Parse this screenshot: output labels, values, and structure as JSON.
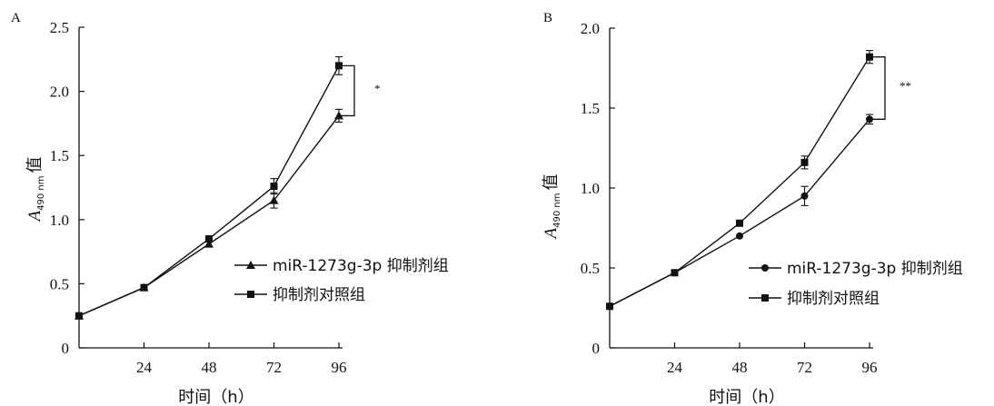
{
  "chart_data": [
    {
      "type": "line",
      "panel": "A",
      "x": [
        0,
        24,
        48,
        72,
        96
      ],
      "x_ticks": [
        "24",
        "48",
        "72",
        "96"
      ],
      "xlabel": "时间（h）",
      "ylabel": {
        "main": "A",
        "sub": "490 nm",
        "suffix": "值"
      },
      "ylim": [
        0,
        2.5
      ],
      "y_ticks": [
        "0",
        "0.5",
        "1.0",
        "1.5",
        "2.0",
        "2.5"
      ],
      "series": [
        {
          "name": "miR-1273g-3p 抑制剂组",
          "marker": "triangle",
          "values": [
            0.25,
            0.47,
            0.81,
            1.15,
            1.81
          ],
          "errors": [
            0.01,
            0.01,
            0.02,
            0.06,
            0.05
          ]
        },
        {
          "name": "抑制剂对照组",
          "marker": "square",
          "values": [
            0.25,
            0.47,
            0.85,
            1.26,
            2.2
          ],
          "errors": [
            0.01,
            0.01,
            0.02,
            0.06,
            0.07
          ]
        }
      ],
      "significance": "*"
    },
    {
      "type": "line",
      "panel": "B",
      "x": [
        0,
        24,
        48,
        72,
        96
      ],
      "x_ticks": [
        "24",
        "48",
        "72",
        "96"
      ],
      "xlabel": "时间（h）",
      "ylabel": {
        "main": "A",
        "sub": "490 nm",
        "suffix": "值"
      },
      "ylim": [
        0,
        2.0
      ],
      "y_ticks": [
        "0",
        "0.5",
        "1.0",
        "1.5",
        "2.0"
      ],
      "series": [
        {
          "name": "miR-1273g-3p 抑制剂组",
          "marker": "circle",
          "values": [
            0.26,
            0.47,
            0.7,
            0.95,
            1.43
          ],
          "errors": [
            0.01,
            0.01,
            0.01,
            0.06,
            0.03
          ]
        },
        {
          "name": "抑制剂对照组",
          "marker": "square",
          "values": [
            0.26,
            0.47,
            0.78,
            1.16,
            1.82
          ],
          "errors": [
            0.01,
            0.01,
            0.01,
            0.04,
            0.04
          ]
        }
      ],
      "significance": "**"
    }
  ]
}
